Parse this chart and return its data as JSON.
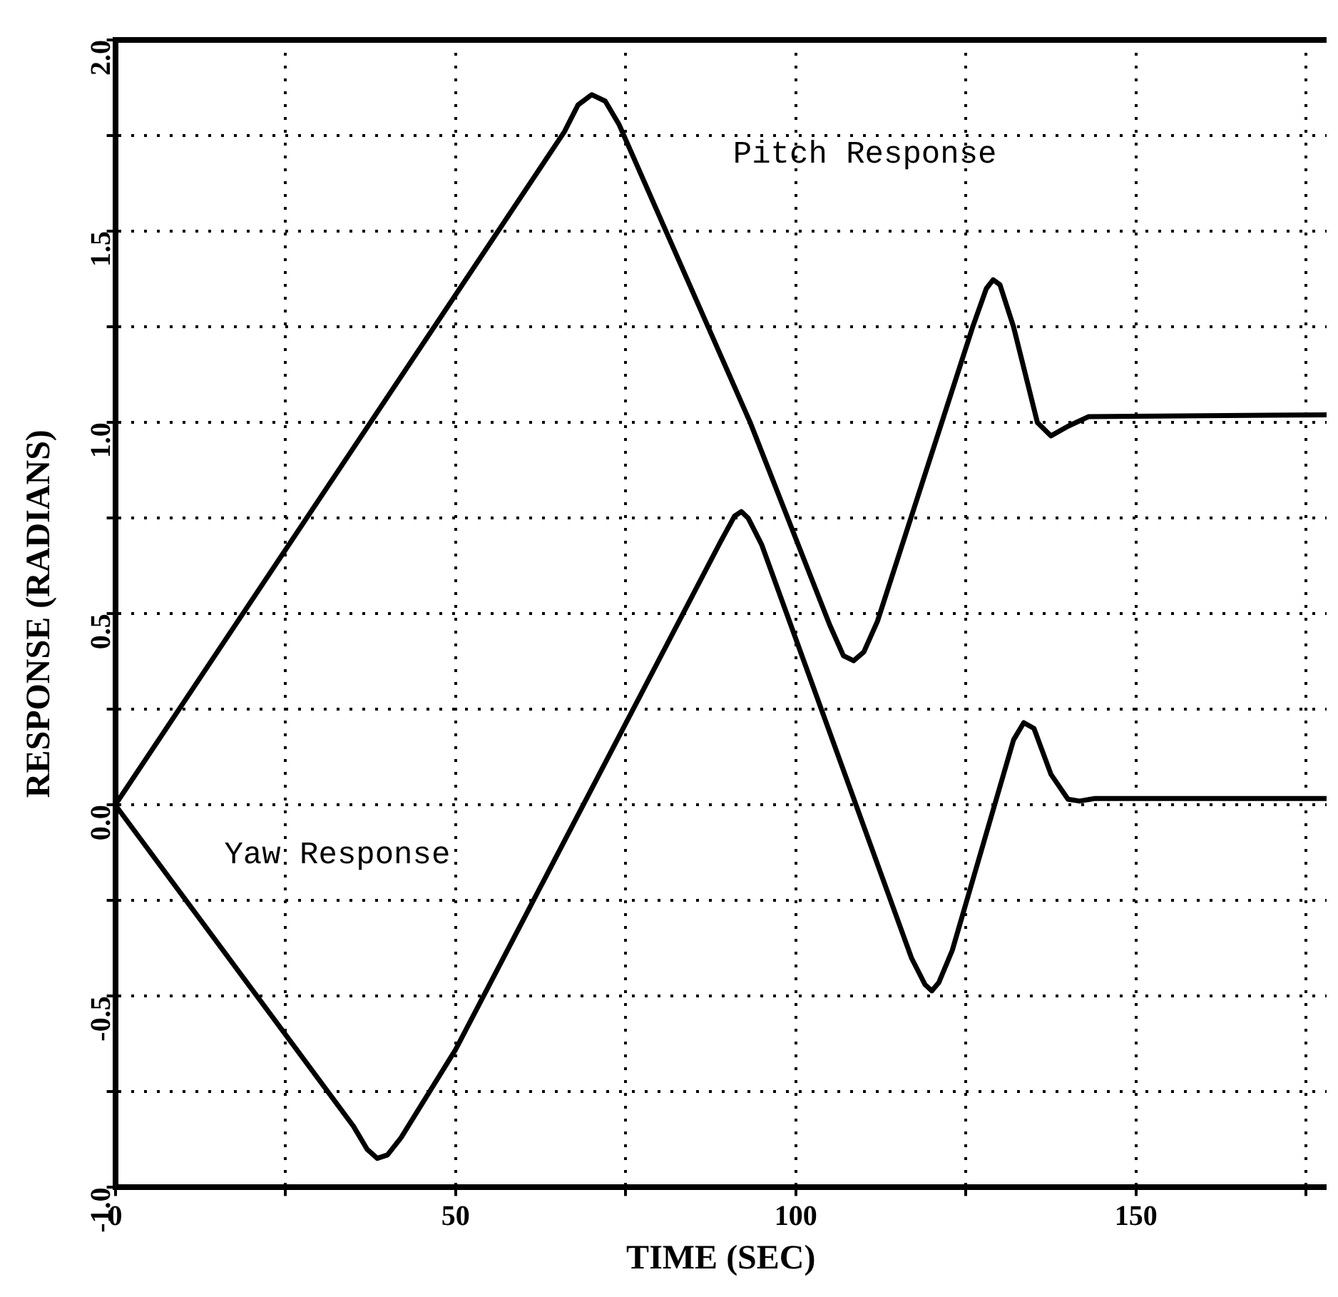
{
  "chart_data": {
    "type": "line",
    "xlabel": "TIME (SEC)",
    "ylabel": "RESPONSE (RADIANS)",
    "xlim": [
      0,
      178
    ],
    "xticks": [
      0,
      {
        "value": 25,
        "label": null
      },
      50,
      {
        "value": 75,
        "label": null
      },
      100,
      {
        "value": 125,
        "label": null
      },
      150,
      {
        "value": 175,
        "label": null
      }
    ],
    "ylim": [
      -1,
      2
    ],
    "yticks": [
      {
        "value": -1,
        "label": "-1.0"
      },
      {
        "value": -0.75,
        "label": null
      },
      {
        "value": -0.5,
        "label": "-0.5"
      },
      {
        "value": -0.25,
        "label": null
      },
      {
        "value": 0,
        "label": "0.0"
      },
      {
        "value": 0.25,
        "label": null
      },
      {
        "value": 0.5,
        "label": "0.5"
      },
      {
        "value": 0.75,
        "label": null
      },
      {
        "value": 1,
        "label": "1.0"
      },
      {
        "value": 1.25,
        "label": null
      },
      {
        "value": 1.5,
        "label": "1.5"
      },
      {
        "value": 1.75,
        "label": null
      },
      {
        "value": 2,
        "label": "2.0"
      }
    ],
    "grid": true,
    "legend": false,
    "marker": "none",
    "line_style": "solid",
    "series": [
      {
        "name": "Pitch Response",
        "color": "#000000",
        "x": [
          0,
          66,
          68,
          70,
          72,
          74,
          93.3,
          105,
          107,
          108.5,
          110,
          112,
          126,
          128,
          129,
          130,
          132,
          135.5,
          137.5,
          140,
          143,
          178
        ],
        "values": [
          0,
          1.76,
          1.83,
          1.857,
          1.84,
          1.78,
          1.0,
          0.47,
          0.39,
          0.377,
          0.4,
          0.48,
          1.25,
          1.35,
          1.373,
          1.36,
          1.25,
          1.0,
          0.965,
          0.99,
          1.015,
          1.02
        ]
      },
      {
        "name": "Yaw Response",
        "color": "#000000",
        "x": [
          0,
          35,
          37,
          38.5,
          40,
          42,
          50,
          89,
          91,
          92,
          93,
          95,
          117,
          119,
          120,
          121,
          123,
          132,
          133.5,
          135,
          137.5,
          140,
          141.7,
          144,
          178
        ],
        "values": [
          0,
          -0.84,
          -0.9,
          -0.924,
          -0.915,
          -0.87,
          -0.64,
          0.69,
          0.755,
          0.767,
          0.75,
          0.68,
          -0.4,
          -0.47,
          -0.486,
          -0.465,
          -0.38,
          0.17,
          0.215,
          0.2,
          0.08,
          0.015,
          0.01,
          0.017,
          0.017
        ]
      }
    ]
  }
}
